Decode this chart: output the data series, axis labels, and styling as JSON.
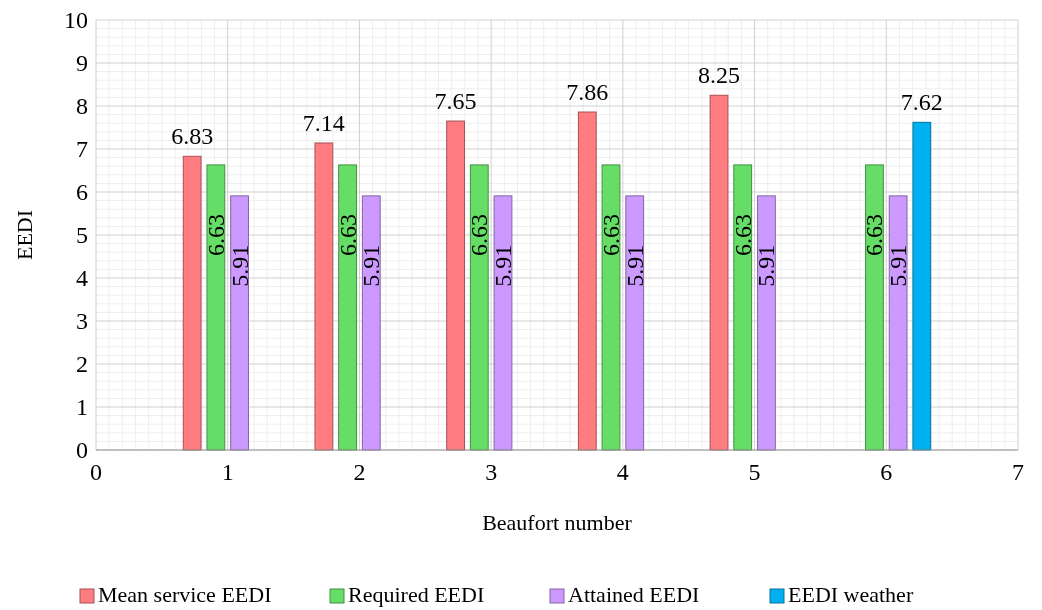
{
  "chart_data": {
    "type": "bar",
    "xlabel": "Beaufort number",
    "ylabel": "EEDI",
    "x": [
      1,
      2,
      3,
      4,
      5,
      6
    ],
    "xlim": [
      0,
      7
    ],
    "xticks": [
      0,
      1,
      2,
      3,
      4,
      5,
      6,
      7
    ],
    "ylim": [
      0,
      10
    ],
    "yticks": [
      0,
      1,
      2,
      3,
      4,
      5,
      6,
      7,
      8,
      9,
      10
    ],
    "series": [
      {
        "name": "Mean service EEDI",
        "color": "#ff7c80",
        "values": [
          6.83,
          7.14,
          7.65,
          7.86,
          8.25,
          null
        ]
      },
      {
        "name": "Required EEDI",
        "color": "#66dd66",
        "values": [
          6.63,
          6.63,
          6.63,
          6.63,
          6.63,
          6.63
        ]
      },
      {
        "name": "Attained EEDI",
        "color": "#cc99ff",
        "values": [
          5.91,
          5.91,
          5.91,
          5.91,
          5.91,
          5.91
        ]
      },
      {
        "name": "EEDI weather",
        "color": "#00b0f0",
        "values": [
          null,
          null,
          null,
          null,
          null,
          7.62
        ]
      }
    ],
    "data_labels": true,
    "grid": true,
    "legend": "bottom"
  }
}
